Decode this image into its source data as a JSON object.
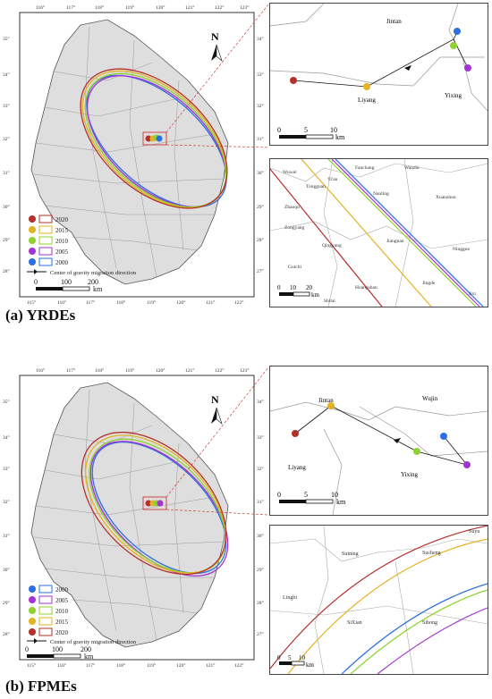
{
  "panel_a": {
    "caption": "(a) YRDEs",
    "top_axis": [
      "116°",
      "117°",
      "118°",
      "119°",
      "120°",
      "121°",
      "122°",
      "123°"
    ],
    "bottom_axis": [
      "115°",
      "116°",
      "117°",
      "118°",
      "119°",
      "120°",
      "121°",
      "122°"
    ],
    "left_axis": [
      "35°",
      "34°",
      "33°",
      "32°",
      "31°",
      "30°",
      "29°",
      "28°"
    ],
    "right_axis": [
      "34°",
      "33°",
      "32°",
      "31°",
      "30°",
      "29°",
      "28°",
      "27°"
    ],
    "north": "N",
    "legend": [
      {
        "year": "2020",
        "color": "#b5302a"
      },
      {
        "year": "2015",
        "color": "#e3b324"
      },
      {
        "year": "2010",
        "color": "#8fd12e"
      },
      {
        "year": "2005",
        "color": "#a334d1"
      },
      {
        "year": "2000",
        "color": "#2d6fe0"
      }
    ],
    "legend_arrow_label": "Center of gravity migration direction",
    "scale": [
      "0",
      "100",
      "200"
    ],
    "scale_unit": "km",
    "inset_top": {
      "labels": [
        "Jintan",
        "Liyang",
        "Yixing"
      ],
      "scale": [
        "0",
        "5",
        "10"
      ],
      "unit": "km"
    },
    "inset_bottom": {
      "labels": [
        "Wuwei",
        "Fanchang",
        "Wanzhi",
        "Tongguan",
        "Yi'an",
        "Nanling",
        "Xuanzhou",
        "Zongyang",
        "Jiangnan",
        "Ningguo",
        "Guichi",
        "Qingyang",
        "Huangshan",
        "Jingde",
        "Shitai",
        "Jixi",
        "Zhaoqu"
      ],
      "scale": [
        "0",
        "10",
        "20"
      ],
      "unit": "km"
    }
  },
  "panel_b": {
    "caption": "(b) FPMEs",
    "top_axis": [
      "116°",
      "117°",
      "118°",
      "119°",
      "120°",
      "121°",
      "122°",
      "123°"
    ],
    "bottom_axis": [
      "115°",
      "116°",
      "117°",
      "118°",
      "119°",
      "120°",
      "121°",
      "122°"
    ],
    "left_axis": [
      "35°",
      "34°",
      "33°",
      "32°",
      "31°",
      "30°",
      "29°",
      "28°"
    ],
    "right_axis": [
      "34°",
      "33°",
      "32°",
      "31°",
      "30°",
      "29°",
      "28°",
      "27°"
    ],
    "north": "N",
    "legend": [
      {
        "year": "2000",
        "color": "#2d6fe0"
      },
      {
        "year": "2005",
        "color": "#a334d1"
      },
      {
        "year": "2010",
        "color": "#8fd12e"
      },
      {
        "year": "2015",
        "color": "#e3b324"
      },
      {
        "year": "2020",
        "color": "#b5302a"
      }
    ],
    "legend_arrow_label": "Center of gravity migration direction",
    "scale": [
      "0",
      "100",
      "200"
    ],
    "scale_unit": "km",
    "inset_top": {
      "labels": [
        "Jintan",
        "Wujin",
        "Liyang",
        "Yixing"
      ],
      "scale": [
        "0",
        "5",
        "10"
      ],
      "unit": "km"
    },
    "inset_bottom": {
      "labels": [
        "Suyu",
        "Suining",
        "Sucheng",
        "Lingbi",
        "SiXian",
        "Sihong"
      ],
      "scale": [
        "0",
        "5",
        "10"
      ],
      "unit": "km"
    }
  }
}
